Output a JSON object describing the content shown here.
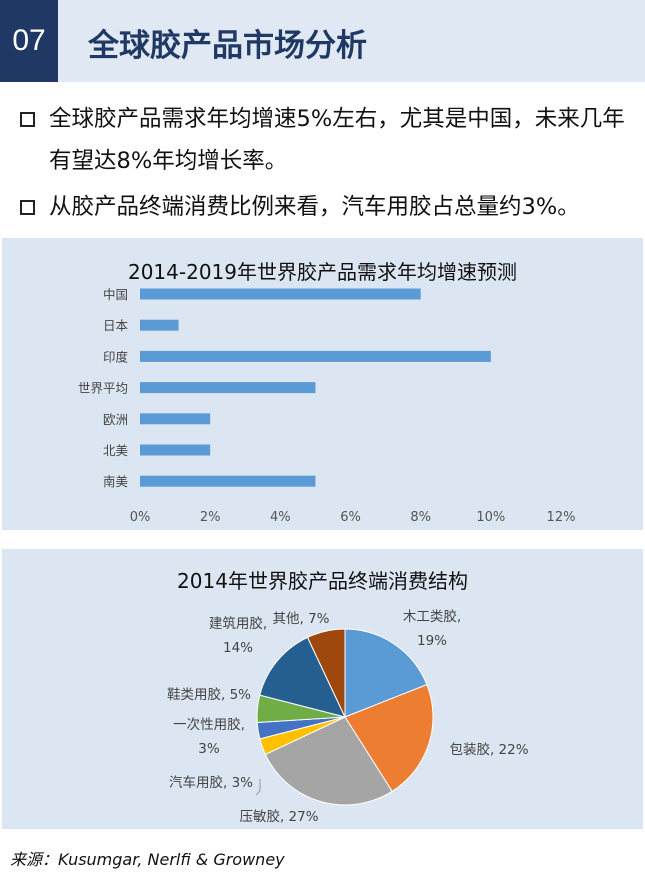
{
  "header": {
    "number": "07",
    "title": "全球胶产品市场分析"
  },
  "bullets": [
    "全球胶产品需求年均增速5%左右，尤其是中国，未来几年有望达8%年均增长率。",
    "从胶产品终端消费比例来看，汽车用胶占总量约3%。"
  ],
  "colors": {
    "header_bg": "#dfe8f3",
    "accent": "#1f3864",
    "panel_bg": "#dce6f2",
    "bar": "#5b9bd5"
  },
  "chart_data": [
    {
      "type": "bar",
      "orientation": "horizontal",
      "title": "2014-2019年世界胶产品需求年均增速预测",
      "categories": [
        "中国",
        "日本",
        "印度",
        "世界平均",
        "欧洲",
        "北美",
        "南美"
      ],
      "values": [
        8,
        1.1,
        10,
        5,
        2,
        2,
        5
      ],
      "value_unit": "%",
      "xlim": [
        0,
        12
      ],
      "xticks": [
        "0%",
        "2%",
        "4%",
        "6%",
        "8%",
        "10%",
        "12%"
      ],
      "grid": false
    },
    {
      "type": "pie",
      "title": "2014年世界胶产品终端消费结构",
      "slices": [
        {
          "name": "木工类胶",
          "value": 19,
          "color": "#5b9bd5",
          "label": [
            "木工类胶,",
            "19%"
          ]
        },
        {
          "name": "包装胶",
          "value": 22,
          "color": "#ed7d31",
          "label": [
            "包装胶, 22%"
          ]
        },
        {
          "name": "压敏胶",
          "value": 27,
          "color": "#a5a5a5",
          "label": [
            "压敏胶, 27%"
          ]
        },
        {
          "name": "汽车用胶",
          "value": 3,
          "color": "#ffc000",
          "label": [
            "汽车用胶, 3%"
          ]
        },
        {
          "name": "一次性用胶",
          "value": 3,
          "color": "#4472c4",
          "label": [
            "一次性用胶,",
            "3%"
          ]
        },
        {
          "name": "鞋类用胶",
          "value": 5,
          "color": "#70ad47",
          "label": [
            "鞋类用胶, 5%"
          ]
        },
        {
          "name": "建筑用胶",
          "value": 14,
          "color": "#255e91",
          "label": [
            "建筑用胶,",
            "14%"
          ]
        },
        {
          "name": "其他",
          "value": 7,
          "color": "#9e480e",
          "label": [
            "其他, 7%"
          ]
        }
      ]
    }
  ],
  "source": "来源：Kusumgar, Nerlfi & Growney"
}
